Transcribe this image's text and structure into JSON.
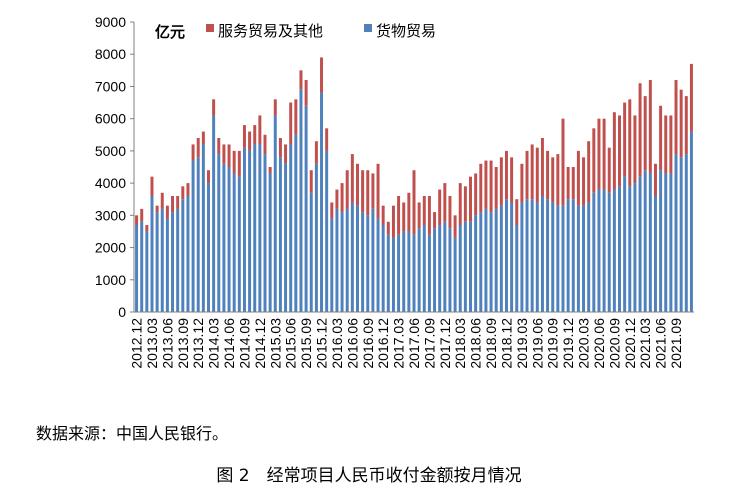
{
  "chart_data": {
    "type": "bar",
    "stacked": true,
    "unit_label": "亿元",
    "ylim": [
      0,
      9000
    ],
    "yticks": [
      0,
      1000,
      2000,
      3000,
      4000,
      5000,
      6000,
      7000,
      8000,
      9000
    ],
    "legend_position": "top",
    "grid": false,
    "xtick_labels": [
      "2012.12",
      "2013.03",
      "2013.06",
      "2013.09",
      "2013.12",
      "2014.03",
      "2014.06",
      "2014.09",
      "2014.12",
      "2015.03",
      "2015.06",
      "2015.09",
      "2015.12",
      "2016.03",
      "2016.06",
      "2016.09",
      "2016.12",
      "2017.03",
      "2017.06",
      "2017.09",
      "2017.12",
      "2018.03",
      "2018.06",
      "2018.09",
      "2018.12",
      "2019.03",
      "2019.06",
      "2019.09",
      "2019.12",
      "2020.03",
      "2020.06",
      "2020.09",
      "2020.12",
      "2021.03",
      "2021.06",
      "2021.09"
    ],
    "series": [
      {
        "name": "货物贸易",
        "color": "#4F81BD",
        "values": [
          2700,
          2800,
          2500,
          3600,
          3100,
          3200,
          2900,
          3100,
          3200,
          3500,
          3600,
          4700,
          4800,
          5200,
          4000,
          6100,
          4900,
          4600,
          4500,
          4300,
          4200,
          5100,
          5000,
          5200,
          5200,
          4900,
          4300,
          6100,
          4800,
          4600,
          5200,
          5500,
          6900,
          6400,
          3700,
          4600,
          6800,
          5000,
          2900,
          3200,
          3100,
          3200,
          3400,
          3300,
          3100,
          3000,
          3200,
          2900,
          2700,
          2400,
          2300,
          2400,
          2500,
          2500,
          2400,
          2600,
          2700,
          2400,
          2600,
          2700,
          2800,
          2600,
          2300,
          2700,
          2800,
          2800,
          3000,
          3100,
          3200,
          3100,
          3200,
          3300,
          3500,
          3400,
          2700,
          3400,
          3500,
          3500,
          3400,
          3600,
          3500,
          3400,
          3300,
          3300,
          3500,
          3500,
          3300,
          3300,
          3400,
          3700,
          3800,
          3800,
          3700,
          3800,
          3900,
          4200,
          3900,
          4000,
          4200,
          4400,
          4300,
          3600,
          4400,
          4300,
          4300,
          4900,
          4800,
          4900,
          5600
        ]
      },
      {
        "name": "服务贸易及其他",
        "color": "#C0504D",
        "values": [
          300,
          400,
          200,
          600,
          200,
          500,
          400,
          500,
          400,
          400,
          400,
          500,
          600,
          400,
          400,
          500,
          500,
          600,
          700,
          700,
          800,
          700,
          600,
          600,
          900,
          600,
          200,
          500,
          600,
          600,
          1300,
          1100,
          600,
          800,
          700,
          700,
          1100,
          700,
          500,
          600,
          900,
          1200,
          1500,
          1300,
          1300,
          1400,
          1100,
          1700,
          600,
          400,
          1000,
          1200,
          900,
          1200,
          2000,
          800,
          900,
          1200,
          500,
          1100,
          1200,
          1000,
          700,
          1300,
          1100,
          1400,
          1300,
          1500,
          1500,
          1600,
          1300,
          1500,
          1500,
          1400,
          800,
          1200,
          1500,
          1700,
          1700,
          1800,
          1500,
          1400,
          1600,
          2700,
          1000,
          1000,
          1700,
          1500,
          1900,
          2000,
          2200,
          2200,
          1400,
          2400,
          2200,
          2300,
          2700,
          2100,
          2900,
          2300,
          2900,
          1000,
          2000,
          1800,
          1800,
          2300,
          2100,
          1800,
          2100
        ]
      }
    ]
  },
  "source_text": "数据来源：中国人民银行。",
  "caption": "图 2　经常项目人民币收付金额按月情况"
}
